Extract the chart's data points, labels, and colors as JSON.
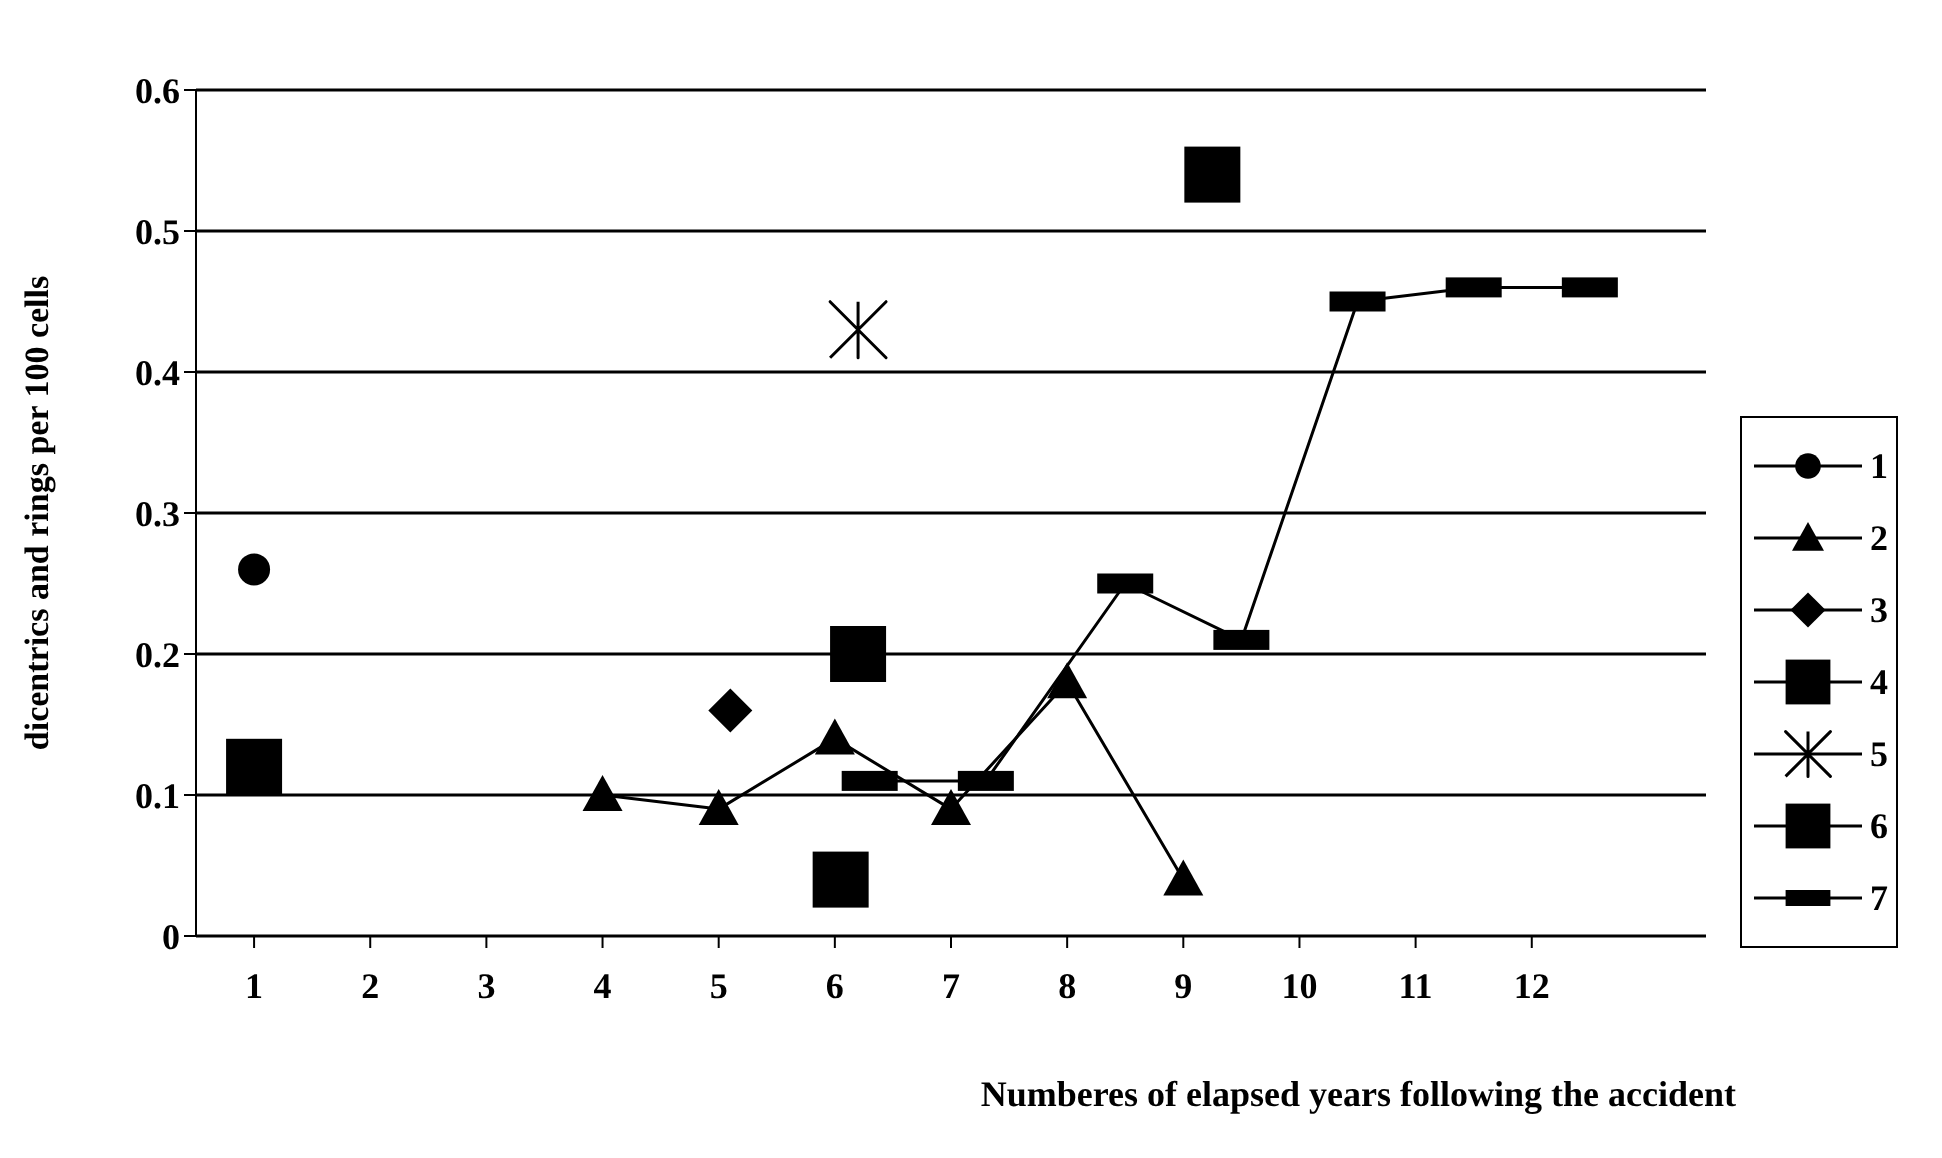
{
  "chart_data": {
    "type": "scatter",
    "xlabel": "Numberes of elapsed years following the accident",
    "ylabel": "dicentrics and rings per 100 cells",
    "xlim": [
      0.5,
      13.5
    ],
    "xticks": [
      1,
      2,
      3,
      4,
      5,
      6,
      7,
      8,
      9,
      10,
      11,
      12
    ],
    "ylim": [
      0,
      0.6
    ],
    "yticks": [
      0,
      0.1,
      0.2,
      0.3,
      0.4,
      0.5,
      0.6
    ],
    "grid": "y",
    "legend": "right",
    "series": [
      {
        "name": "1",
        "marker": "circle",
        "color": "#000000",
        "x": [
          1
        ],
        "values": [
          0.26
        ]
      },
      {
        "name": "2",
        "type": "line",
        "marker": "triangle",
        "color": "#000000",
        "x": [
          4,
          5,
          6,
          7,
          8,
          9
        ],
        "values": [
          0.1,
          0.09,
          0.14,
          0.09,
          0.18,
          0.04
        ]
      },
      {
        "name": "3",
        "marker": "diamond",
        "color": "#000000",
        "x": [
          5.1
        ],
        "values": [
          0.16
        ]
      },
      {
        "name": "4",
        "marker": "square",
        "color": "#000000",
        "x": [
          1,
          6.2
        ],
        "values": [
          0.12,
          0.2
        ]
      },
      {
        "name": "5",
        "marker": "cross",
        "color": "#000000",
        "x": [
          6.2
        ],
        "values": [
          0.43
        ]
      },
      {
        "name": "6",
        "marker": "square",
        "color": "#000000",
        "x": [
          6.05,
          9.25
        ],
        "values": [
          0.04,
          0.54
        ]
      },
      {
        "name": "7",
        "type": "line",
        "marker": "square",
        "color": "#000000",
        "x": [
          6.3,
          7.3,
          8.5,
          9.5,
          10.5,
          11.5,
          12.5
        ],
        "values": [
          0.11,
          0.11,
          0.25,
          0.21,
          0.45,
          0.46,
          0.46
        ]
      }
    ]
  }
}
